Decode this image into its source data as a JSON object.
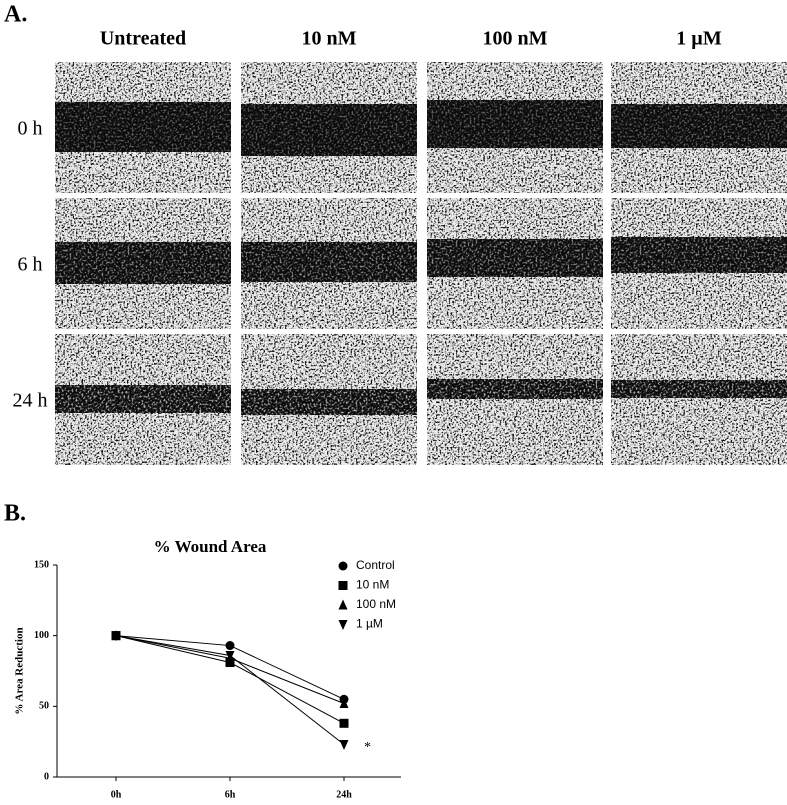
{
  "panel_a": {
    "label": "A.",
    "columns": [
      "Untreated",
      "10 nM",
      "100 nM",
      "1 µM"
    ],
    "rows": [
      "0 h",
      "6 h",
      "24 h"
    ]
  },
  "panel_b": {
    "label": "B."
  },
  "chart_data": {
    "type": "line",
    "title": "% Wound Area",
    "y_label": "% Area Reduction",
    "categories": [
      "0h",
      "6h",
      "24h"
    ],
    "series": [
      {
        "name": "Control",
        "color": "#000000",
        "marker": "circle",
        "values": [
          100,
          93,
          55
        ]
      },
      {
        "name": "10 nM",
        "color": "#000000",
        "marker": "square",
        "values": [
          100,
          81,
          38
        ]
      },
      {
        "name": "100 nM",
        "color": "#000000",
        "marker": "triangle-up",
        "values": [
          100,
          84,
          52
        ]
      },
      {
        "name": "1 µM",
        "color": "#000000",
        "marker": "triangle-down",
        "values": [
          100,
          86,
          23
        ]
      }
    ],
    "ylim": [
      0,
      150
    ],
    "yticks": [
      0,
      50,
      100,
      150
    ],
    "grid": false,
    "legend": "top-right",
    "annotation": "*"
  }
}
